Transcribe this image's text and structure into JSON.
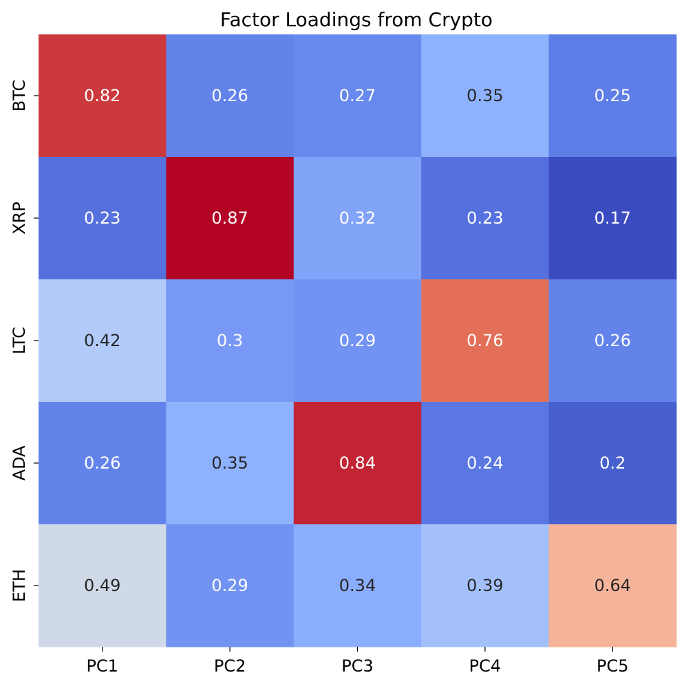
{
  "chart_data": {
    "type": "heatmap",
    "title": "Factor Loadings from Crypto",
    "xlabel": "",
    "ylabel": "",
    "x_categories": [
      "PC1",
      "PC2",
      "PC3",
      "PC4",
      "PC5"
    ],
    "y_categories": [
      "BTC",
      "XRP",
      "LTC",
      "ADA",
      "ETH"
    ],
    "values": [
      [
        0.82,
        0.26,
        0.27,
        0.35,
        0.25
      ],
      [
        0.23,
        0.87,
        0.32,
        0.23,
        0.17
      ],
      [
        0.42,
        0.3,
        0.29,
        0.76,
        0.26
      ],
      [
        0.26,
        0.35,
        0.84,
        0.24,
        0.2
      ],
      [
        0.49,
        0.29,
        0.34,
        0.39,
        0.64
      ]
    ],
    "colormap": "coolwarm",
    "value_range": [
      0.17,
      0.87
    ],
    "colorbar": false,
    "annotated": true,
    "text_color_dark": "#262626",
    "text_color_light": "#ffffff"
  }
}
